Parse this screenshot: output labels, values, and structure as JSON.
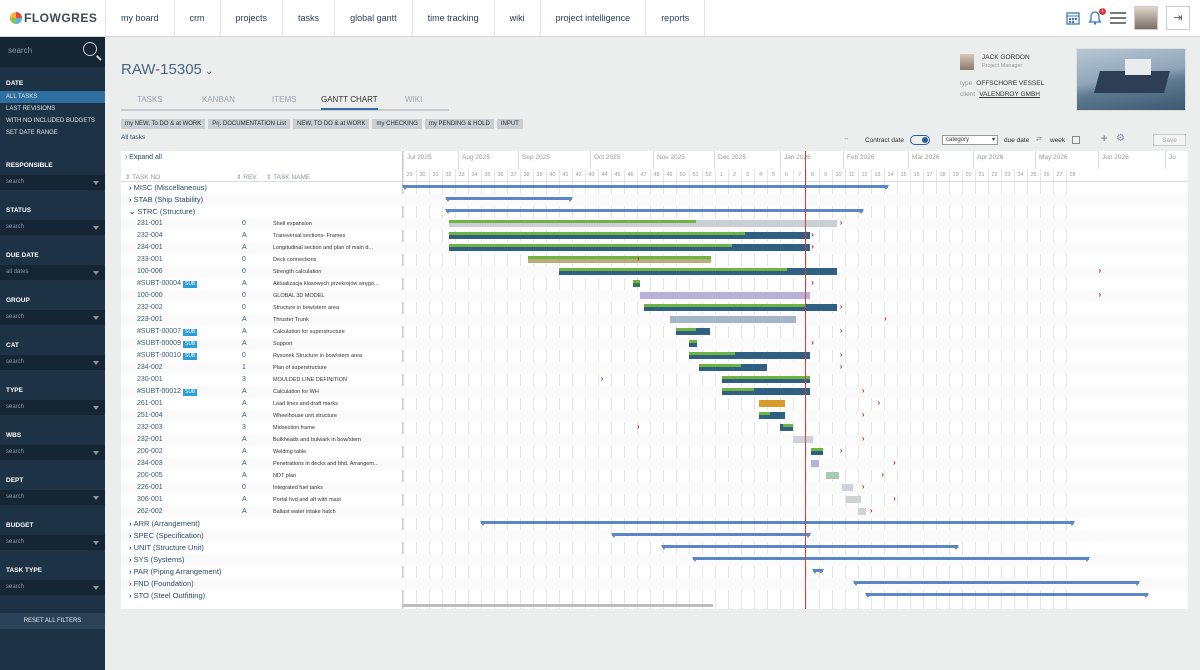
{
  "nav": {
    "logo": "FLOWGRES",
    "items": [
      "my board",
      "crm",
      "projects",
      "tasks",
      "global gantt",
      "time tracking",
      "wiki",
      "project intelligence",
      "reports"
    ],
    "notif": "1"
  },
  "sidebar": {
    "search": "search",
    "date_h": "DATE",
    "dates": [
      "ALL TASKS",
      "LAST REVISIONS",
      "WITH NO INCLUDED BUDGETS",
      "SET DATE RANGE"
    ],
    "filters": [
      {
        "h": "RESPONSIBLE",
        "v": "search"
      },
      {
        "h": "STATUS",
        "v": "search"
      },
      {
        "h": "DUE DATE",
        "v": "all dates"
      },
      {
        "h": "GROUP",
        "v": "search"
      },
      {
        "h": "CAT",
        "v": "search"
      },
      {
        "h": "TYPE",
        "v": "search"
      },
      {
        "h": "WBS",
        "v": "search"
      },
      {
        "h": "DEPT",
        "v": "search"
      },
      {
        "h": "BUDGET",
        "v": "search"
      },
      {
        "h": "TASK TYPE",
        "v": "search"
      }
    ],
    "reset": "RESET ALL FILTERS"
  },
  "project": {
    "title": "RAW-15305",
    "tabs": [
      "TASKS",
      "KANBAN",
      "ITEMS",
      "GANTT CHART",
      "WIKI"
    ],
    "active_tab": "GANTT CHART",
    "filters": [
      "my NEW, To DO & at WORK",
      "Prj. DOCUMENTATION List",
      "NEW, TO DO & at WORK",
      "my CHECKING",
      "my PENDING & HOLD",
      "INPUT"
    ],
    "all_tasks": "All tasks",
    "pm_name": "JACK GORDON",
    "pm_role": "Project Manager",
    "type_k": "type",
    "type_v": "OFFSCHORE VESSEL",
    "client_k": "client",
    "client_v": "VALENDROY GMBH"
  },
  "controls": {
    "contract_date": "Contract date",
    "category": "category",
    "due_date": "due date",
    "week": "week",
    "save": "Save"
  },
  "gantt": {
    "expand": "Expand all",
    "col_task": "TASK NO",
    "col_rev": "REV.",
    "col_name": "TASK NAME",
    "months": [
      "Jul 2025",
      "Aug 2025",
      "Sep 2025",
      "Oct 2025",
      "Nov 2025",
      "Dec 2025",
      "Jan 2026",
      "Feb 2026",
      "Mar 2026",
      "Apr 2026",
      "May 2026",
      "Jun 2026",
      "Ju"
    ],
    "weeks": [
      "29",
      "30",
      "31",
      "32",
      "33",
      "34",
      "35",
      "36",
      "37",
      "38",
      "39",
      "40",
      "41",
      "42",
      "43",
      "44",
      "45",
      "46",
      "47",
      "48",
      "49",
      "50",
      "51",
      "52",
      "1",
      "2",
      "3",
      "4",
      "5",
      "6",
      "7",
      "8",
      "9",
      "10",
      "11",
      "12",
      "13",
      "14",
      "15",
      "16",
      "17",
      "18",
      "19",
      "20",
      "21",
      "22",
      "23",
      "24",
      "25",
      "26",
      "27",
      "28"
    ],
    "rows": [
      {
        "g": "MISC (Miscellaneous)",
        "s": [
          0,
          37.3
        ]
      },
      {
        "g": "STAB (Ship Stability)",
        "s": [
          3.3,
          13
        ]
      },
      {
        "g": "STRC (Structure)",
        "s": [
          3.3,
          35.4
        ],
        "open": true
      },
      {
        "n": "231-001",
        "r": "0",
        "d": "Shell expansion",
        "b": [
          3.5,
          33.4,
          "#c9cfd5"
        ],
        "gr": [
          3.5,
          22.5
        ],
        "a": 33.6
      },
      {
        "n": "232-004",
        "r": "A",
        "d": "Transversal sections- Frames",
        "b": [
          3.5,
          31.3,
          "#2f5f82"
        ],
        "gr": [
          3.5,
          26.3
        ],
        "a": 31.4
      },
      {
        "n": "234-001",
        "r": "A",
        "d": "Longitudinal section and plan of main d...",
        "b": [
          3.5,
          31.3,
          "#2f5f82"
        ],
        "gr": [
          3.5,
          25.3
        ],
        "a": 31.4
      },
      {
        "n": "233-001",
        "r": "0",
        "d": "Deck connections",
        "b": [
          9.6,
          23.7,
          "#b9ad7b"
        ],
        "gr": [
          9.6,
          23.7
        ],
        "a": 18
      },
      {
        "n": "100-006",
        "r": "0",
        "d": "Strength calculation",
        "b": [
          12,
          33.4,
          "#2f5f82"
        ],
        "gr": [
          12,
          29.5
        ],
        "a": 53.5
      },
      {
        "n": "#SUBT-00004",
        "sub": true,
        "r": "A",
        "d": "Aktualizacja klasowych przekrojów wręgo...",
        "b": [
          17.7,
          18.2,
          "#2f7a55"
        ],
        "gr": [
          17.7,
          18.2
        ],
        "a": 31.4
      },
      {
        "n": "100-000",
        "r": "0",
        "d": "GLOBAL 3D MODEL",
        "b": [
          18.2,
          31.3,
          "#b9b0d8"
        ],
        "gr": null,
        "a": 53.5
      },
      {
        "n": "232-002",
        "r": "0",
        "d": "Structure in bow/stern area",
        "b": [
          18.5,
          33.4,
          "#2f5f82"
        ],
        "gr": [
          18.5,
          31
        ],
        "a": 33.6
      },
      {
        "n": "223-001",
        "r": "A",
        "d": "Thruster Trunk",
        "b": [
          20.5,
          30.2,
          "#a4b5c8"
        ],
        "gr": null,
        "a": 37
      },
      {
        "n": "#SUBT-00007",
        "sub": true,
        "r": "A",
        "d": "Calculation for superstructure",
        "b": [
          21,
          23.6,
          "#2f5f82"
        ],
        "gr": [
          21,
          22.5
        ],
        "a": 33.6
      },
      {
        "n": "#SUBT-00009",
        "sub": true,
        "r": "A",
        "d": "Support",
        "b": [
          22,
          22.6,
          "#2f5f82"
        ],
        "gr": [
          22,
          22.6
        ],
        "a": 31.4
      },
      {
        "n": "#SUBT-00010",
        "sub": true,
        "r": "0",
        "d": "Rysunek Structure in bow/stern area",
        "b": [
          22,
          31.3,
          "#2f5f82"
        ],
        "gr": [
          22,
          25.5
        ],
        "a": 33.6
      },
      {
        "n": "234-002",
        "r": "1",
        "d": "Plan of superstructure",
        "b": [
          22.8,
          28,
          "#2f5f82"
        ],
        "gr": [
          22.8,
          26
        ],
        "a": 33.6
      },
      {
        "n": "230-001",
        "r": "3",
        "d": "MOULDED LINE DEFINITION",
        "b": [
          24.5,
          31.3,
          "#2f5f82"
        ],
        "gr": [
          24.5,
          31.3
        ],
        "a": 15.2
      },
      {
        "n": "#SUBT-00012",
        "sub": true,
        "r": "A",
        "d": "Calculation for WH",
        "b": [
          24.5,
          31.3,
          "#2f5f82"
        ],
        "gr": [
          24.5,
          27
        ],
        "a": 35.3
      },
      {
        "n": "261-001",
        "r": "A",
        "d": "Load lines and draft marks",
        "b": [
          27.4,
          29.4,
          "#d89a2b"
        ],
        "gr": null,
        "a": 36.5
      },
      {
        "n": "251-004",
        "r": "A",
        "d": "Wheelhouse unit structure",
        "b": [
          27.4,
          29.4,
          "#2f5f82"
        ],
        "gr": [
          27.4,
          28.2
        ],
        "a": 35.3
      },
      {
        "n": "232-003",
        "r": "3",
        "d": "Midsection frame",
        "b": [
          29,
          30,
          "#2f5f82"
        ],
        "gr": [
          29.2,
          30
        ],
        "a": 18
      },
      {
        "n": "232-001",
        "r": "A",
        "d": "Bulkheads and bulwark in bow/stern",
        "b": [
          30,
          31.5,
          "#cfd3d7"
        ],
        "gr": null,
        "a": 35.3
      },
      {
        "n": "200-002",
        "r": "A",
        "d": "Welding table",
        "b": [
          31.4,
          32.3,
          "#2f5f82"
        ],
        "gr": [
          31.4,
          32.3
        ],
        "a": 33.6
      },
      {
        "n": "234-003",
        "r": "A",
        "d": "Penetrations in decks and bhd. Arrangem...",
        "b": [
          31.4,
          32,
          "#b9b0d8"
        ],
        "gr": null,
        "a": 37.7
      },
      {
        "n": "200-005",
        "r": "A",
        "d": "NDT plan",
        "b": [
          32.5,
          33.5,
          "#a9c9b3"
        ],
        "gr": null,
        "a": 36.8
      },
      {
        "n": "226-001",
        "r": "0",
        "d": "Integrated fuel tanks",
        "b": [
          33.8,
          34.6,
          "#cfd3d7"
        ],
        "gr": null,
        "a": 35.3
      },
      {
        "n": "306-001",
        "r": "A",
        "d": "Portal hvd and aft with mast",
        "b": [
          34.1,
          35.2,
          "#cfd3d7"
        ],
        "gr": null,
        "a": 37.7
      },
      {
        "n": "262-002",
        "r": "A",
        "d": "Ballast water intake hatch",
        "b": [
          35,
          35.6,
          "#cfd3d7"
        ],
        "gr": null,
        "a": 35.9
      },
      {
        "g": "ARR (Arrangement)",
        "s": [
          6,
          51.6
        ]
      },
      {
        "g": "SPEC (Specification)",
        "s": [
          16.1,
          31.3
        ]
      },
      {
        "g": "UNIT (Structure Unit)",
        "s": [
          19.9,
          42.7
        ]
      },
      {
        "g": "SYS (Systems)",
        "s": [
          22.3,
          52.8
        ]
      },
      {
        "g": "PAR (Piping Arrangement)",
        "s": [
          31.5,
          32.3
        ]
      },
      {
        "g": "FND (Foundation)",
        "s": [
          34.7,
          56.6
        ]
      },
      {
        "g": "STO (Steel Outfitting)",
        "s": [
          35.6,
          57.3
        ]
      }
    ]
  }
}
